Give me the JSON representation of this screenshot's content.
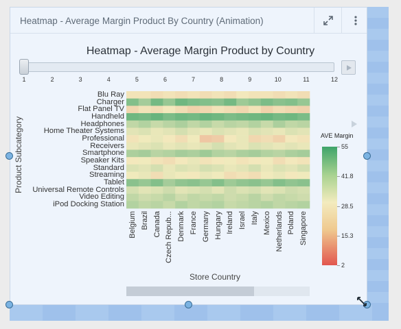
{
  "panel": {
    "title": "Heatmap - Average Margin Product By Country (Animation)",
    "expand_icon": "expand-icon",
    "more_icon": "vertical-dots-icon"
  },
  "chart_data": {
    "type": "heatmap",
    "title": "Heatmap - Average Margin Product by Country",
    "xlabel": "Store Country",
    "ylabel": "Product Subcategory",
    "rows": [
      "Blu Ray",
      "Charger",
      "Flat Panel TV",
      "Handheld",
      "Headphones",
      "Home Theater Systems",
      "Professional",
      "Receivers",
      "Smartphone",
      "Speaker Kits",
      "Standard",
      "Streaming",
      "Tablet",
      "Universal Remote Controls",
      "Video Editing",
      "iPod Docking Station"
    ],
    "columns": [
      "Belgium",
      "Brazil",
      "Canada",
      "Czech Repub...",
      "Denmark",
      "France",
      "Germany",
      "Hungary",
      "Ireland",
      "Israel",
      "Italy",
      "Mexico",
      "Netherlands",
      "Poland",
      "Singapore"
    ],
    "values": [
      [
        27,
        27,
        26,
        27,
        26,
        27,
        26,
        27,
        26,
        28,
        27,
        27,
        26,
        27,
        26
      ],
      [
        45,
        40,
        47,
        42,
        48,
        46,
        45,
        44,
        47,
        41,
        43,
        46,
        44,
        45,
        42
      ],
      [
        25,
        27,
        26,
        28,
        26,
        24,
        25,
        27,
        26,
        25,
        27,
        24,
        26,
        25,
        24
      ],
      [
        48,
        47,
        49,
        46,
        48,
        47,
        49,
        48,
        46,
        47,
        48,
        49,
        47,
        48,
        46
      ],
      [
        36,
        38,
        35,
        37,
        39,
        36,
        38,
        35,
        37,
        36,
        38,
        35,
        39,
        36,
        37
      ],
      [
        31,
        32,
        30,
        31,
        33,
        31,
        30,
        32,
        31,
        30,
        32,
        31,
        30,
        32,
        31
      ],
      [
        27,
        29,
        30,
        28,
        26,
        29,
        22,
        23,
        28,
        30,
        25,
        26,
        24,
        28,
        27
      ],
      [
        30,
        31,
        32,
        30,
        31,
        30,
        31,
        33,
        31,
        30,
        32,
        31,
        30,
        31,
        30
      ],
      [
        39,
        40,
        37,
        38,
        40,
        39,
        41,
        38,
        37,
        39,
        40,
        38,
        37,
        39,
        40
      ],
      [
        28,
        29,
        27,
        26,
        28,
        30,
        27,
        28,
        29,
        27,
        28,
        29,
        26,
        28,
        27
      ],
      [
        32,
        31,
        33,
        30,
        32,
        31,
        33,
        32,
        30,
        31,
        33,
        30,
        32,
        31,
        33
      ],
      [
        29,
        30,
        26,
        30,
        29,
        28,
        30,
        29,
        26,
        27,
        26,
        29,
        30,
        28,
        29
      ],
      [
        44,
        42,
        45,
        40,
        43,
        44,
        42,
        45,
        41,
        43,
        44,
        42,
        45,
        43,
        44
      ],
      [
        33,
        31,
        32,
        34,
        31,
        32,
        33,
        31,
        34,
        32,
        33,
        31,
        32,
        34,
        33
      ],
      [
        36,
        34,
        35,
        37,
        34,
        36,
        35,
        36,
        34,
        35,
        37,
        34,
        36,
        35,
        34
      ],
      [
        38,
        36,
        37,
        35,
        38,
        36,
        37,
        38,
        35,
        36,
        37,
        38,
        36,
        37,
        38
      ]
    ],
    "legend": {
      "title": "AVE Margin",
      "ticks": [
        55,
        41.8,
        28.5,
        15.3,
        2
      ],
      "min": 2,
      "max": 55
    },
    "colors": {
      "high": "#3fa46a",
      "mid": "#f3ebbe",
      "low": "#e2564f"
    },
    "slider": {
      "ticks": [
        "1",
        "2",
        "3",
        "4",
        "5",
        "6",
        "7",
        "8",
        "9",
        "10",
        "11",
        "12"
      ],
      "value": 1
    },
    "play_icon": "play-icon"
  }
}
